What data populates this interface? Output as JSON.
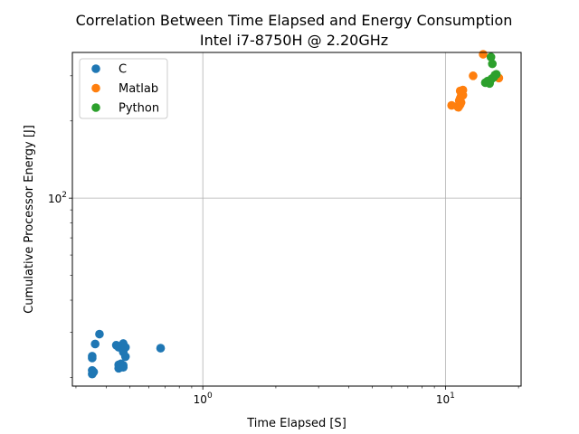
{
  "chart_data": {
    "type": "scatter",
    "title": "Correlation Between Time Elapsed and Energy Consumption",
    "subtitle": "Intel i7-8750H @ 2.20GHz",
    "xlabel": "Time Elapsed [S]",
    "ylabel": "Cumulative Processor Energy [J]",
    "xscale": "log",
    "yscale": "log",
    "xlim": [
      0.29,
      20.5
    ],
    "ylim": [
      18.5,
      370
    ],
    "grid": true,
    "legend_position": "top-left",
    "x_ticks": [
      {
        "value": 1,
        "mantissa": "10",
        "exp": "0"
      },
      {
        "value": 10,
        "mantissa": "10",
        "exp": "1"
      }
    ],
    "y_ticks": [
      {
        "value": 100,
        "mantissa": "10",
        "exp": "2"
      }
    ],
    "series": [
      {
        "name": "C",
        "color": "#1f77b4",
        "points": [
          {
            "x": 0.35,
            "y": 24.2
          },
          {
            "x": 0.35,
            "y": 23.8
          },
          {
            "x": 0.35,
            "y": 21.3
          },
          {
            "x": 0.35,
            "y": 20.6
          },
          {
            "x": 0.355,
            "y": 21.0
          },
          {
            "x": 0.36,
            "y": 27.0
          },
          {
            "x": 0.375,
            "y": 29.5
          },
          {
            "x": 0.44,
            "y": 26.7
          },
          {
            "x": 0.45,
            "y": 26.2
          },
          {
            "x": 0.45,
            "y": 22.4
          },
          {
            "x": 0.45,
            "y": 21.7
          },
          {
            "x": 0.46,
            "y": 22.6
          },
          {
            "x": 0.46,
            "y": 21.9
          },
          {
            "x": 0.47,
            "y": 27.1
          },
          {
            "x": 0.47,
            "y": 25.1
          },
          {
            "x": 0.47,
            "y": 21.9
          },
          {
            "x": 0.48,
            "y": 24.1
          },
          {
            "x": 0.48,
            "y": 26.2
          },
          {
            "x": 0.47,
            "y": 22.3
          },
          {
            "x": 0.67,
            "y": 26.0
          }
        ]
      },
      {
        "name": "Matlab",
        "color": "#ff7f0e",
        "points": [
          {
            "x": 10.6,
            "y": 230
          },
          {
            "x": 11.2,
            "y": 228
          },
          {
            "x": 11.3,
            "y": 226
          },
          {
            "x": 11.4,
            "y": 229
          },
          {
            "x": 11.5,
            "y": 232
          },
          {
            "x": 11.6,
            "y": 236
          },
          {
            "x": 11.4,
            "y": 240
          },
          {
            "x": 11.5,
            "y": 245
          },
          {
            "x": 11.6,
            "y": 250
          },
          {
            "x": 11.7,
            "y": 255
          },
          {
            "x": 11.8,
            "y": 252
          },
          {
            "x": 11.5,
            "y": 262
          },
          {
            "x": 11.8,
            "y": 264
          },
          {
            "x": 13.0,
            "y": 300
          },
          {
            "x": 14.3,
            "y": 364
          },
          {
            "x": 16.6,
            "y": 294
          }
        ]
      },
      {
        "name": "Python",
        "color": "#2ca02c",
        "points": [
          {
            "x": 14.6,
            "y": 282
          },
          {
            "x": 15.0,
            "y": 284
          },
          {
            "x": 15.2,
            "y": 280
          },
          {
            "x": 15.3,
            "y": 288
          },
          {
            "x": 15.5,
            "y": 292
          },
          {
            "x": 15.8,
            "y": 296
          },
          {
            "x": 16.0,
            "y": 302
          },
          {
            "x": 16.2,
            "y": 304
          },
          {
            "x": 15.6,
            "y": 334
          },
          {
            "x": 15.4,
            "y": 355
          },
          {
            "x": 14.9,
            "y": 286
          }
        ]
      }
    ]
  }
}
